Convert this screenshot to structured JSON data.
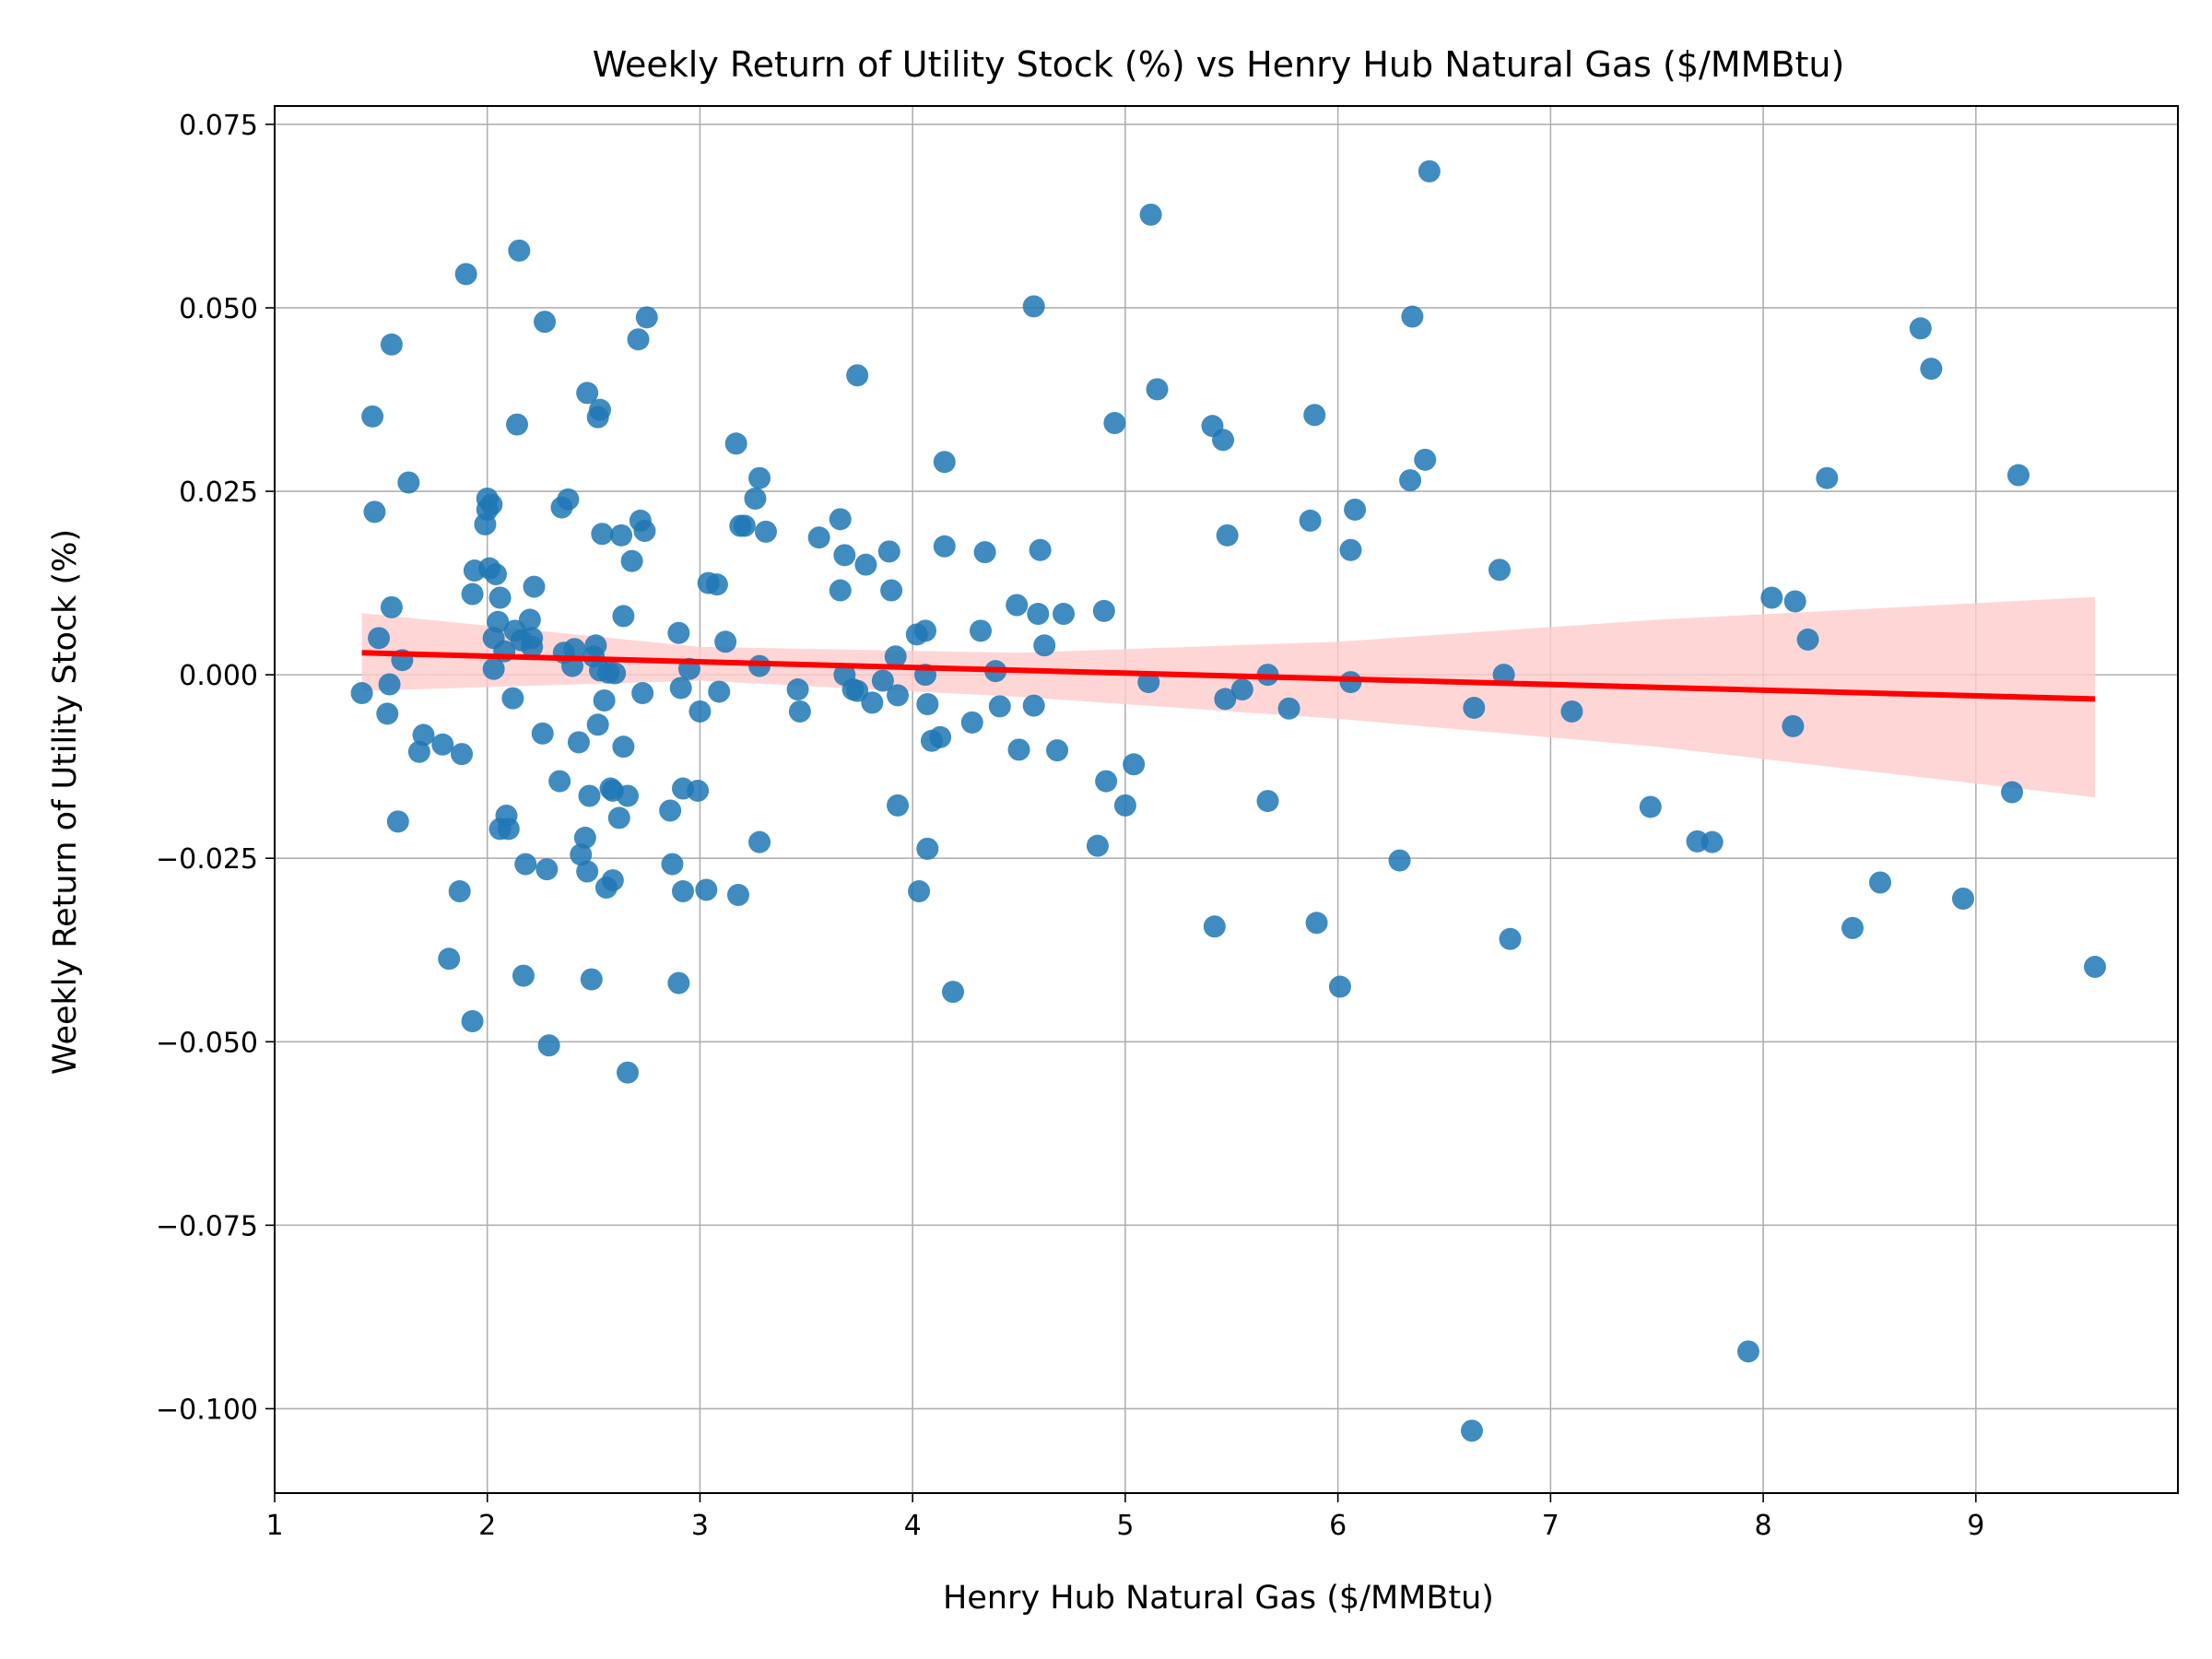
{
  "chart_data": {
    "type": "scatter",
    "title": "Weekly Return of Utility Stock (%) vs Henry Hub Natural Gas ($/MMBtu)",
    "xlabel": "Henry Hub Natural Gas ($/MMBtu)",
    "ylabel": "Weekly Return of Utility Stock (%)",
    "xlim": [
      1.0,
      9.95
    ],
    "ylim": [
      -0.1115,
      0.0775
    ],
    "xticks": [
      1,
      2,
      3,
      4,
      5,
      6,
      7,
      8,
      9
    ],
    "xtick_labels": [
      "1",
      "2",
      "3",
      "4",
      "5",
      "6",
      "7",
      "8",
      "9"
    ],
    "yticks": [
      -0.1,
      -0.075,
      -0.05,
      -0.025,
      0.0,
      0.025,
      0.05,
      0.075
    ],
    "ytick_labels": [
      "−0.100",
      "−0.075",
      "−0.050",
      "−0.025",
      "0.000",
      "0.025",
      "0.050",
      "0.075"
    ],
    "grid": true,
    "point_color": "#1f77b4",
    "line_color": "#ff0000",
    "band_color": "#ffcccc",
    "regression": {
      "x_start": 1.41,
      "y_start": 0.003,
      "x_end": 9.56,
      "y_end": -0.0033
    },
    "confidence_band": [
      {
        "x": 1.41,
        "lower": -0.0022,
        "upper": 0.0084
      },
      {
        "x": 3.0,
        "lower": -0.0008,
        "upper": 0.0038
      },
      {
        "x": 4.5,
        "lower": -0.003,
        "upper": 0.003
      },
      {
        "x": 6.0,
        "lower": -0.006,
        "upper": 0.0045
      },
      {
        "x": 7.5,
        "lower": -0.0098,
        "upper": 0.0075
      },
      {
        "x": 9.56,
        "lower": -0.0167,
        "upper": 0.0106
      }
    ],
    "points": [
      [
        1.41,
        -0.0025
      ],
      [
        1.46,
        0.0352
      ],
      [
        1.47,
        0.0222
      ],
      [
        1.49,
        0.005
      ],
      [
        1.53,
        -0.0053
      ],
      [
        1.54,
        -0.0013
      ],
      [
        1.55,
        0.045
      ],
      [
        1.55,
        0.0092
      ],
      [
        1.58,
        -0.02
      ],
      [
        1.6,
        0.002
      ],
      [
        1.63,
        0.0262
      ],
      [
        1.68,
        -0.0105
      ],
      [
        1.7,
        -0.0082
      ],
      [
        1.79,
        -0.0095
      ],
      [
        1.82,
        -0.0387
      ],
      [
        1.87,
        -0.0295
      ],
      [
        1.88,
        -0.0108
      ],
      [
        1.9,
        0.0546
      ],
      [
        1.93,
        -0.0472
      ],
      [
        1.93,
        0.011
      ],
      [
        1.94,
        0.0142
      ],
      [
        1.99,
        0.0205
      ],
      [
        2.0,
        0.0225
      ],
      [
        2.0,
        0.024
      ],
      [
        2.01,
        0.0145
      ],
      [
        2.02,
        0.0232
      ],
      [
        2.03,
        0.005
      ],
      [
        2.03,
        0.0008
      ],
      [
        2.04,
        0.0137
      ],
      [
        2.05,
        0.0072
      ],
      [
        2.06,
        0.0105
      ],
      [
        2.06,
        -0.021
      ],
      [
        2.08,
        0.0032
      ],
      [
        2.09,
        -0.0192
      ],
      [
        2.1,
        -0.021
      ],
      [
        2.12,
        -0.0032
      ],
      [
        2.13,
        0.006
      ],
      [
        2.14,
        0.0341
      ],
      [
        2.15,
        0.0578
      ],
      [
        2.16,
        0.0047
      ],
      [
        2.17,
        -0.041
      ],
      [
        2.18,
        -0.0258
      ],
      [
        2.2,
        0.0075
      ],
      [
        2.21,
        0.0038
      ],
      [
        2.21,
        0.005
      ],
      [
        2.22,
        0.012
      ],
      [
        2.26,
        -0.008
      ],
      [
        2.27,
        0.0481
      ],
      [
        2.28,
        -0.0265
      ],
      [
        2.29,
        -0.0505
      ],
      [
        2.34,
        -0.0145
      ],
      [
        2.35,
        0.0228
      ],
      [
        2.36,
        0.003
      ],
      [
        2.38,
        0.0239
      ],
      [
        2.4,
        0.0012
      ],
      [
        2.41,
        0.0035
      ],
      [
        2.43,
        -0.0092
      ],
      [
        2.44,
        -0.0245
      ],
      [
        2.46,
        -0.0222
      ],
      [
        2.47,
        0.0384
      ],
      [
        2.47,
        -0.0268
      ],
      [
        2.48,
        -0.0165
      ],
      [
        2.49,
        -0.0415
      ],
      [
        2.5,
        0.0025
      ],
      [
        2.51,
        0.004
      ],
      [
        2.52,
        0.0351
      ],
      [
        2.52,
        -0.0068
      ],
      [
        2.53,
        0.0361
      ],
      [
        2.53,
        0.0006
      ],
      [
        2.54,
        0.0192
      ],
      [
        2.55,
        -0.0035
      ],
      [
        2.56,
        -0.029
      ],
      [
        2.57,
        0.0003
      ],
      [
        2.58,
        -0.0155
      ],
      [
        2.59,
        -0.028
      ],
      [
        2.59,
        -0.0158
      ],
      [
        2.6,
        0.0002
      ],
      [
        2.62,
        -0.0195
      ],
      [
        2.63,
        0.019
      ],
      [
        2.64,
        -0.0098
      ],
      [
        2.64,
        0.008
      ],
      [
        2.66,
        -0.0165
      ],
      [
        2.66,
        -0.0542
      ],
      [
        2.68,
        0.0155
      ],
      [
        2.71,
        0.0457
      ],
      [
        2.72,
        0.021
      ],
      [
        2.73,
        -0.0025
      ],
      [
        2.74,
        0.0196
      ],
      [
        2.75,
        0.0487
      ],
      [
        2.86,
        -0.0185
      ],
      [
        2.87,
        -0.0258
      ],
      [
        2.9,
        0.0057
      ],
      [
        2.9,
        -0.042
      ],
      [
        2.91,
        -0.0018
      ],
      [
        2.92,
        -0.0155
      ],
      [
        2.92,
        -0.0295
      ],
      [
        2.95,
        0.0008
      ],
      [
        2.99,
        -0.0158
      ],
      [
        3.0,
        -0.005
      ],
      [
        3.03,
        -0.0293
      ],
      [
        3.04,
        0.0125
      ],
      [
        3.08,
        0.0123
      ],
      [
        3.09,
        -0.0023
      ],
      [
        3.12,
        0.0045
      ],
      [
        3.17,
        0.0315
      ],
      [
        3.18,
        -0.03
      ],
      [
        3.19,
        0.0203
      ],
      [
        3.21,
        0.0203
      ],
      [
        3.26,
        0.024
      ],
      [
        3.28,
        0.0268
      ],
      [
        3.28,
        0.0012
      ],
      [
        3.28,
        -0.0228
      ],
      [
        3.31,
        0.0195
      ],
      [
        3.46,
        -0.002
      ],
      [
        3.47,
        -0.005
      ],
      [
        3.56,
        0.0187
      ],
      [
        3.66,
        0.0212
      ],
      [
        3.66,
        0.0115
      ],
      [
        3.68,
        0.0163
      ],
      [
        3.68,
        0.0
      ],
      [
        3.72,
        -0.002
      ],
      [
        3.74,
        0.0408
      ],
      [
        3.74,
        -0.0022
      ],
      [
        3.78,
        0.015
      ],
      [
        3.81,
        -0.0038
      ],
      [
        3.86,
        -0.0008
      ],
      [
        3.89,
        0.0168
      ],
      [
        3.9,
        0.0115
      ],
      [
        3.92,
        0.0025
      ],
      [
        3.93,
        -0.0028
      ],
      [
        3.93,
        -0.0178
      ],
      [
        4.02,
        0.0055
      ],
      [
        4.03,
        -0.0295
      ],
      [
        4.06,
        0.006
      ],
      [
        4.06,
        0.0
      ],
      [
        4.07,
        -0.004
      ],
      [
        4.07,
        -0.0237
      ],
      [
        4.09,
        -0.009
      ],
      [
        4.13,
        -0.0085
      ],
      [
        4.15,
        0.029
      ],
      [
        4.15,
        0.0175
      ],
      [
        4.19,
        -0.0432
      ],
      [
        4.28,
        -0.0065
      ],
      [
        4.32,
        0.006
      ],
      [
        4.34,
        0.0167
      ],
      [
        4.39,
        0.0005
      ],
      [
        4.41,
        -0.0043
      ],
      [
        4.49,
        0.0095
      ],
      [
        4.5,
        -0.0102
      ],
      [
        4.57,
        0.0502
      ],
      [
        4.57,
        -0.0042
      ],
      [
        4.59,
        0.0083
      ],
      [
        4.6,
        0.017
      ],
      [
        4.62,
        0.004
      ],
      [
        4.68,
        -0.0103
      ],
      [
        4.71,
        0.0083
      ],
      [
        4.87,
        -0.0233
      ],
      [
        4.9,
        0.0087
      ],
      [
        4.91,
        -0.0145
      ],
      [
        4.95,
        0.0343
      ],
      [
        5.0,
        -0.0178
      ],
      [
        5.04,
        -0.0122
      ],
      [
        5.11,
        -0.001
      ],
      [
        5.12,
        0.0627
      ],
      [
        5.15,
        0.0389
      ],
      [
        5.41,
        0.0339
      ],
      [
        5.42,
        -0.0343
      ],
      [
        5.46,
        0.032
      ],
      [
        5.47,
        -0.0033
      ],
      [
        5.48,
        0.019
      ],
      [
        5.55,
        -0.002
      ],
      [
        5.67,
        0.0
      ],
      [
        5.67,
        -0.0172
      ],
      [
        5.77,
        -0.0046
      ],
      [
        5.87,
        0.021
      ],
      [
        5.89,
        0.0354
      ],
      [
        5.9,
        -0.0338
      ],
      [
        6.01,
        -0.0425
      ],
      [
        6.06,
        -0.001
      ],
      [
        6.06,
        0.017
      ],
      [
        6.08,
        0.0225
      ],
      [
        6.29,
        -0.0253
      ],
      [
        6.34,
        0.0265
      ],
      [
        6.35,
        0.0488
      ],
      [
        6.41,
        0.0293
      ],
      [
        6.43,
        0.0686
      ],
      [
        6.63,
        -0.103
      ],
      [
        6.64,
        -0.0045
      ],
      [
        6.76,
        0.0143
      ],
      [
        6.78,
        0.0
      ],
      [
        6.81,
        -0.036
      ],
      [
        7.1,
        -0.005
      ],
      [
        7.47,
        -0.018
      ],
      [
        7.69,
        -0.0227
      ],
      [
        7.76,
        -0.0228
      ],
      [
        7.93,
        -0.0922
      ],
      [
        8.04,
        0.0105
      ],
      [
        8.14,
        -0.007
      ],
      [
        8.15,
        0.01
      ],
      [
        8.21,
        0.0048
      ],
      [
        8.3,
        0.0268
      ],
      [
        8.42,
        -0.0345
      ],
      [
        8.55,
        -0.0283
      ],
      [
        8.74,
        0.0472
      ],
      [
        8.79,
        0.0417
      ],
      [
        8.94,
        -0.0305
      ],
      [
        9.17,
        -0.016
      ],
      [
        9.2,
        0.0272
      ],
      [
        9.56,
        -0.0398
      ]
    ]
  }
}
